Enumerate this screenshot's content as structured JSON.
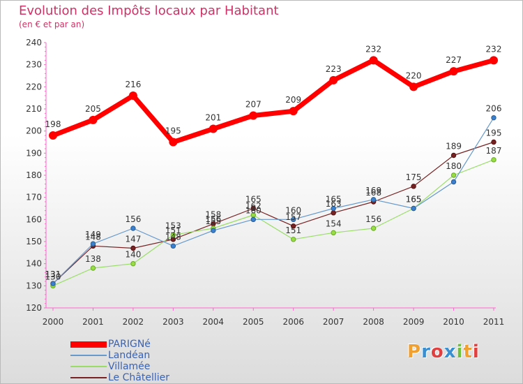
{
  "chart_data": {
    "type": "line",
    "title": "Evolution des Impôts locaux par Habitant",
    "subtitle": "(en € et par an)",
    "xlabel": "",
    "ylabel": "",
    "categories": [
      "2000",
      "2001",
      "2002",
      "2003",
      "2004",
      "2005",
      "2006",
      "2007",
      "2008",
      "2009",
      "2010",
      "2011"
    ],
    "ylim": [
      120,
      240
    ],
    "yticks": [
      120,
      130,
      140,
      150,
      160,
      170,
      180,
      190,
      200,
      210,
      220,
      230,
      240
    ],
    "grid": false,
    "legend_position": "bottom-left",
    "series": [
      {
        "name": "PARIGNé",
        "color": "#ff0000",
        "values": [
          198,
          205,
          216,
          195,
          201,
          207,
          209,
          223,
          232,
          220,
          227,
          232
        ]
      },
      {
        "name": "Landéan",
        "color": "#6699cc",
        "values": [
          131,
          149,
          156,
          148,
          155,
          160,
          160,
          165,
          169,
          165,
          177,
          206
        ]
      },
      {
        "name": "Villamée",
        "color": "#99dd66",
        "values": [
          130,
          138,
          140,
          153,
          156,
          162,
          151,
          154,
          156,
          165,
          180,
          187
        ]
      },
      {
        "name": "Le Châtellier",
        "color": "#772222",
        "values": [
          131,
          148,
          147,
          151,
          158,
          165,
          157,
          163,
          168,
          175,
          189,
          195
        ]
      }
    ],
    "data_labels": [
      [
        "198",
        "205",
        "216",
        "195",
        "201",
        "207",
        "209",
        "223",
        "232",
        "220",
        "227",
        "232"
      ],
      [
        "131",
        "149",
        "156",
        "148",
        "155",
        "160",
        "160",
        "165",
        "169",
        "165",
        "",
        "206"
      ],
      [
        "130",
        "138",
        "140",
        "153",
        "156",
        "162",
        "151",
        "154",
        "156",
        "165",
        "180",
        "187"
      ],
      [
        "131",
        "148",
        "147",
        "151",
        "158",
        "165",
        "157",
        "163",
        "168",
        "175",
        "189",
        "195"
      ]
    ]
  },
  "branding": {
    "logo_text": "Proxiti",
    "colors": [
      "#f0a030",
      "#3a8fd0",
      "#e04040",
      "#3a8fd0",
      "#70c040",
      "#f0a030",
      "#e04040"
    ]
  }
}
